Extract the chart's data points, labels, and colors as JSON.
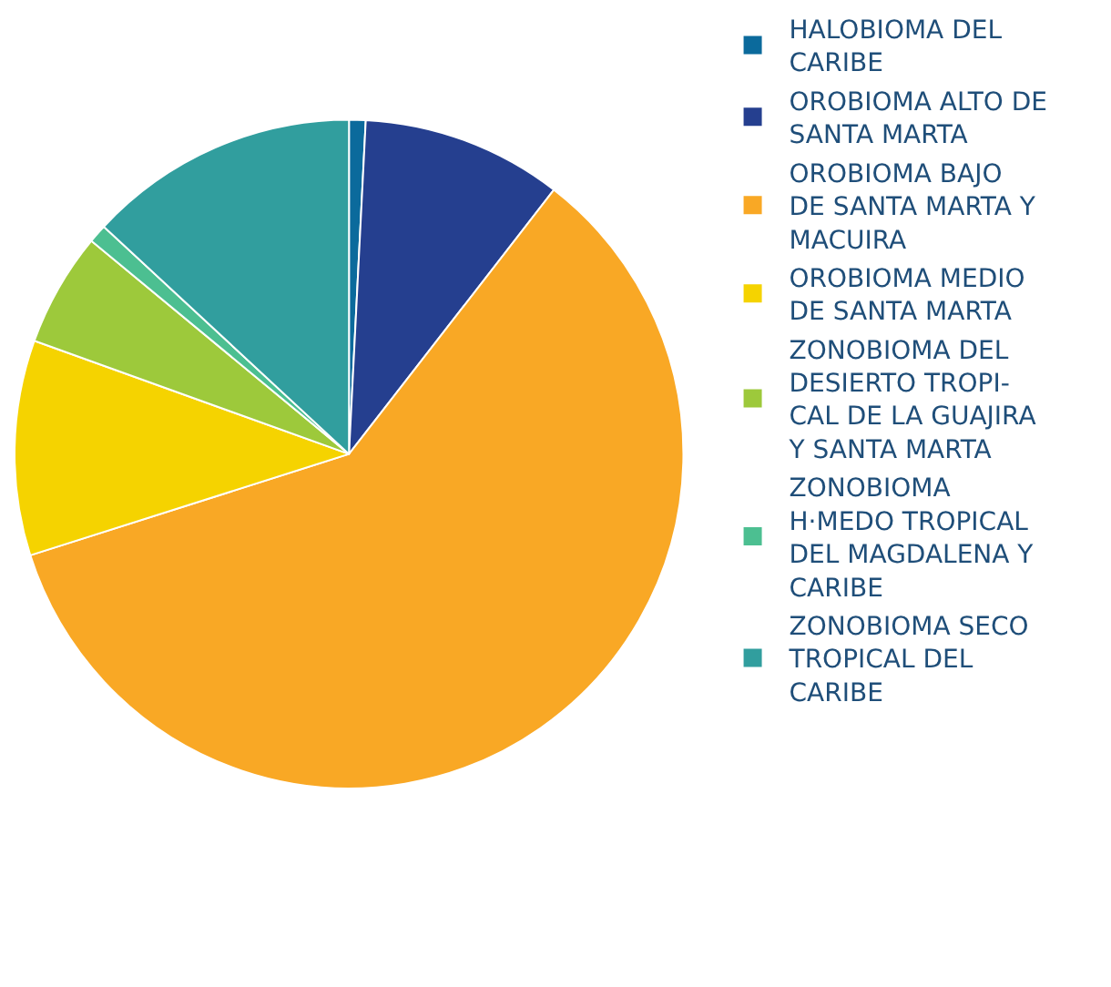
{
  "chart_data": {
    "type": "pie",
    "categories": [
      "HALOBIOMA DEL\nCARIBE",
      "OROBIOMA ALTO DE\nSANTA MARTA",
      "OROBIOMA BAJO\nDE SANTA MARTA Y\nMACUIRA",
      "OROBIOMA MEDIO\nDE SANTA MARTA",
      "ZONOBIOMA DEL\nDESIERTO TROPI-\nCAL DE LA GUAJIRA\nY SANTA MARTA",
      "ZONOBIOMA\nH·MEDO TROPICAL\nDEL MAGDALENA Y\nCARIBE",
      "ZONOBIOMA SECO\nTROPICAL DEL\nCARIBE"
    ],
    "values": [
      0.8,
      9.7,
      59.6,
      10.4,
      5.5,
      0.9,
      13.1
    ],
    "colors": [
      "#0b6a9c",
      "#253f8f",
      "#f9a825",
      "#f5d300",
      "#9dc93b",
      "#4cbf91",
      "#319e9e"
    ],
    "legend": "right"
  }
}
